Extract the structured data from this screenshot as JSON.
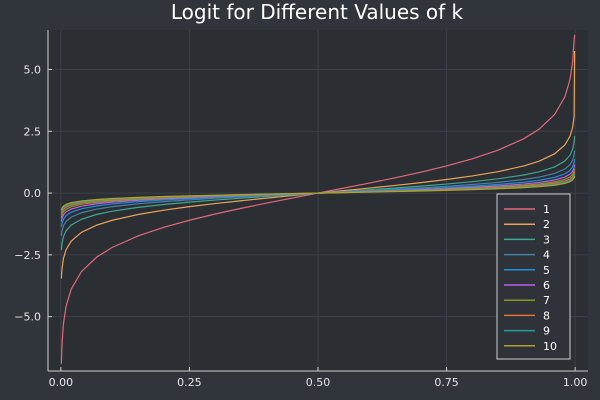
{
  "chart_data": {
    "type": "line",
    "title": "Logit for Different Values of k",
    "xlabel": "",
    "ylabel": "",
    "xlim": [
      -0.025,
      1.025
    ],
    "ylim": [
      -7.2,
      6.6
    ],
    "x_ticks": [
      0.0,
      0.25,
      0.5,
      0.75,
      1.0
    ],
    "x_tick_labels": [
      "0.00",
      "0.25",
      "0.50",
      "0.75",
      "1.00"
    ],
    "y_ticks": [
      -5.0,
      -2.5,
      0.0,
      2.5,
      5.0
    ],
    "y_tick_labels": [
      "−5.0",
      "−2.5",
      "0.0",
      "2.5",
      "5.0"
    ],
    "grid": true,
    "legend_position": "bottom-right",
    "x": [
      0.001,
      0.002,
      0.005,
      0.01,
      0.02,
      0.04,
      0.07,
      0.1,
      0.15,
      0.2,
      0.25,
      0.3,
      0.35,
      0.4,
      0.45,
      0.5,
      0.55,
      0.6,
      0.65,
      0.7,
      0.75,
      0.8,
      0.85,
      0.9,
      0.93,
      0.96,
      0.98,
      0.99,
      0.995,
      0.998,
      0.999
    ],
    "series": [
      {
        "name": "1",
        "color": "#e26a79",
        "values": [
          -6.907,
          -6.213,
          -5.293,
          -4.595,
          -3.892,
          -3.178,
          -2.587,
          -2.197,
          -1.735,
          -1.386,
          -1.099,
          -0.847,
          -0.619,
          -0.405,
          -0.201,
          0.0,
          0.201,
          0.405,
          0.619,
          0.847,
          1.099,
          1.386,
          1.735,
          2.197,
          2.587,
          3.178,
          3.892,
          4.595,
          5.293,
          6.213,
          6.4
        ]
      },
      {
        "name": "2",
        "color": "#eaa55a",
        "values": [
          -3.454,
          -3.106,
          -2.647,
          -2.298,
          -1.946,
          -1.589,
          -1.293,
          -1.099,
          -0.867,
          -0.693,
          -0.549,
          -0.424,
          -0.31,
          -0.203,
          -0.1,
          0.0,
          0.1,
          0.203,
          0.31,
          0.424,
          0.549,
          0.693,
          0.867,
          1.099,
          1.293,
          1.589,
          1.946,
          2.298,
          2.647,
          3.106,
          5.75
        ]
      },
      {
        "name": "3",
        "color": "#3ea891",
        "values": [
          -2.302,
          -2.071,
          -1.764,
          -1.532,
          -1.297,
          -1.059,
          -0.862,
          -0.732,
          -0.578,
          -0.462,
          -0.366,
          -0.282,
          -0.206,
          -0.135,
          -0.067,
          0.0,
          0.067,
          0.135,
          0.206,
          0.282,
          0.366,
          0.462,
          0.578,
          0.732,
          0.862,
          1.059,
          1.297,
          1.532,
          1.764,
          2.071,
          2.302
        ]
      },
      {
        "name": "4",
        "color": "#4a7fa6",
        "values": [
          -1.727,
          -1.553,
          -1.323,
          -1.149,
          -0.973,
          -0.795,
          -0.647,
          -0.549,
          -0.434,
          -0.347,
          -0.275,
          -0.212,
          -0.155,
          -0.101,
          -0.05,
          0.0,
          0.05,
          0.101,
          0.155,
          0.212,
          0.275,
          0.347,
          0.434,
          0.549,
          0.647,
          0.795,
          0.973,
          1.149,
          1.323,
          1.553,
          1.727
        ]
      },
      {
        "name": "5",
        "color": "#1d8ed8",
        "values": [
          -1.381,
          -1.243,
          -1.059,
          -0.919,
          -0.778,
          -0.636,
          -0.517,
          -0.439,
          -0.347,
          -0.277,
          -0.22,
          -0.169,
          -0.124,
          -0.081,
          -0.04,
          0.0,
          0.04,
          0.081,
          0.124,
          0.169,
          0.22,
          0.277,
          0.347,
          0.439,
          0.517,
          0.636,
          0.778,
          0.919,
          1.059,
          1.243,
          1.381
        ]
      },
      {
        "name": "6",
        "color": "#c25ee8",
        "values": [
          -1.151,
          -1.035,
          -0.882,
          -0.766,
          -0.649,
          -0.53,
          -0.431,
          -0.366,
          -0.289,
          -0.231,
          -0.183,
          -0.141,
          -0.103,
          -0.068,
          -0.034,
          0.0,
          0.034,
          0.068,
          0.103,
          0.141,
          0.183,
          0.231,
          0.289,
          0.366,
          0.431,
          0.53,
          0.649,
          0.766,
          0.882,
          1.035,
          1.151
        ]
      },
      {
        "name": "7",
        "color": "#7e9c2e",
        "values": [
          -0.987,
          -0.888,
          -0.756,
          -0.656,
          -0.556,
          -0.454,
          -0.37,
          -0.314,
          -0.248,
          -0.198,
          -0.157,
          -0.121,
          -0.088,
          -0.058,
          -0.029,
          0.0,
          0.029,
          0.058,
          0.088,
          0.121,
          0.157,
          0.198,
          0.248,
          0.314,
          0.37,
          0.454,
          0.556,
          0.656,
          0.756,
          0.888,
          0.987
        ]
      },
      {
        "name": "8",
        "color": "#e1703a",
        "values": [
          -0.863,
          -0.777,
          -0.662,
          -0.574,
          -0.487,
          -0.397,
          -0.323,
          -0.275,
          -0.217,
          -0.173,
          -0.137,
          -0.106,
          -0.077,
          -0.051,
          -0.025,
          0.0,
          0.025,
          0.051,
          0.077,
          0.106,
          0.137,
          0.173,
          0.217,
          0.275,
          0.323,
          0.397,
          0.487,
          0.574,
          0.662,
          0.777,
          0.863
        ]
      },
      {
        "name": "9",
        "color": "#229ea0",
        "values": [
          -0.767,
          -0.69,
          -0.588,
          -0.511,
          -0.432,
          -0.353,
          -0.287,
          -0.244,
          -0.193,
          -0.154,
          -0.122,
          -0.094,
          -0.069,
          -0.045,
          -0.022,
          0.0,
          0.022,
          0.045,
          0.069,
          0.094,
          0.122,
          0.154,
          0.193,
          0.244,
          0.287,
          0.353,
          0.432,
          0.511,
          0.588,
          0.69,
          0.767
        ]
      },
      {
        "name": "10",
        "color": "#b2a22b",
        "values": [
          -0.691,
          -0.621,
          -0.529,
          -0.46,
          -0.389,
          -0.318,
          -0.259,
          -0.22,
          -0.173,
          -0.139,
          -0.11,
          -0.085,
          -0.062,
          -0.041,
          -0.02,
          0.0,
          0.02,
          0.041,
          0.062,
          0.085,
          0.11,
          0.139,
          0.173,
          0.22,
          0.259,
          0.318,
          0.389,
          0.46,
          0.529,
          0.621,
          0.691
        ]
      }
    ]
  },
  "colors": {
    "background": "#30343b",
    "plot_background": "#2b2e33",
    "grid": "#3c4048",
    "axis": "#cfcfcf",
    "legend_border": "#cfcfcf",
    "legend_background": "#2f3238"
  }
}
